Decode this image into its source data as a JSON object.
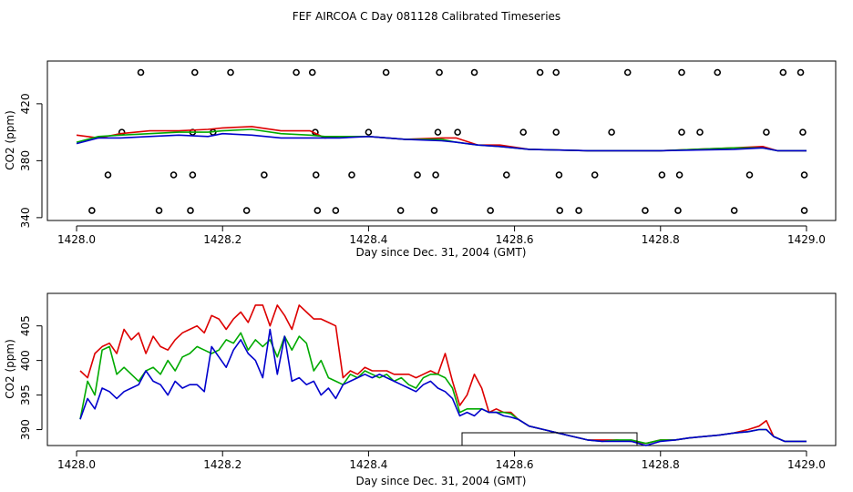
{
  "title": "FEF AIRCOA C  Day 081128  Calibrated Timeseries",
  "chart_data": [
    {
      "type": "scatter+line",
      "xlabel": "Day since Dec. 31, 2004 (GMT)",
      "ylabel": "CO2 (ppm)",
      "xlim": [
        1427.96,
        1429.04
      ],
      "ylim": [
        338,
        450
      ],
      "xticks": [
        1428.0,
        1428.2,
        1428.4,
        1428.6,
        1428.8,
        1429.0
      ],
      "xtick_labels": [
        "1428.0",
        "1428.2",
        "1428.4",
        "1428.6",
        "1428.8",
        "1429.0"
      ],
      "yticks": [
        340,
        380,
        420
      ],
      "ytick_labels": [
        "340",
        "380",
        "420"
      ],
      "markers": [
        {
          "x": 1428.088,
          "y": 442
        },
        {
          "x": 1428.162,
          "y": 442
        },
        {
          "x": 1428.211,
          "y": 442
        },
        {
          "x": 1428.301,
          "y": 442
        },
        {
          "x": 1428.323,
          "y": 442
        },
        {
          "x": 1428.424,
          "y": 442
        },
        {
          "x": 1428.497,
          "y": 442
        },
        {
          "x": 1428.545,
          "y": 442
        },
        {
          "x": 1428.635,
          "y": 442
        },
        {
          "x": 1428.657,
          "y": 442
        },
        {
          "x": 1428.755,
          "y": 442
        },
        {
          "x": 1428.829,
          "y": 442
        },
        {
          "x": 1428.878,
          "y": 442
        },
        {
          "x": 1428.968,
          "y": 442
        },
        {
          "x": 1428.992,
          "y": 442
        },
        {
          "x": 1428.062,
          "y": 400
        },
        {
          "x": 1428.159,
          "y": 400
        },
        {
          "x": 1428.187,
          "y": 400
        },
        {
          "x": 1428.327,
          "y": 400
        },
        {
          "x": 1428.4,
          "y": 400
        },
        {
          "x": 1428.495,
          "y": 400
        },
        {
          "x": 1428.522,
          "y": 400
        },
        {
          "x": 1428.612,
          "y": 400
        },
        {
          "x": 1428.657,
          "y": 400
        },
        {
          "x": 1428.733,
          "y": 400
        },
        {
          "x": 1428.829,
          "y": 400
        },
        {
          "x": 1428.854,
          "y": 400
        },
        {
          "x": 1428.945,
          "y": 400
        },
        {
          "x": 1428.995,
          "y": 400
        },
        {
          "x": 1428.043,
          "y": 370
        },
        {
          "x": 1428.133,
          "y": 370
        },
        {
          "x": 1428.159,
          "y": 370
        },
        {
          "x": 1428.257,
          "y": 370
        },
        {
          "x": 1428.328,
          "y": 370
        },
        {
          "x": 1428.377,
          "y": 370
        },
        {
          "x": 1428.467,
          "y": 370
        },
        {
          "x": 1428.492,
          "y": 370
        },
        {
          "x": 1428.589,
          "y": 370
        },
        {
          "x": 1428.661,
          "y": 370
        },
        {
          "x": 1428.71,
          "y": 370
        },
        {
          "x": 1428.802,
          "y": 370
        },
        {
          "x": 1428.826,
          "y": 370
        },
        {
          "x": 1428.922,
          "y": 370
        },
        {
          "x": 1428.997,
          "y": 370
        },
        {
          "x": 1428.021,
          "y": 345
        },
        {
          "x": 1428.113,
          "y": 345
        },
        {
          "x": 1428.156,
          "y": 345
        },
        {
          "x": 1428.233,
          "y": 345
        },
        {
          "x": 1428.33,
          "y": 345
        },
        {
          "x": 1428.355,
          "y": 345
        },
        {
          "x": 1428.444,
          "y": 345
        },
        {
          "x": 1428.49,
          "y": 345
        },
        {
          "x": 1428.567,
          "y": 345
        },
        {
          "x": 1428.662,
          "y": 345
        },
        {
          "x": 1428.688,
          "y": 345
        },
        {
          "x": 1428.779,
          "y": 345
        },
        {
          "x": 1428.824,
          "y": 345
        },
        {
          "x": 1428.901,
          "y": 345
        },
        {
          "x": 1428.997,
          "y": 345
        }
      ],
      "series": [
        {
          "name": "red",
          "color": "#dd0000",
          "x": [
            1428.0,
            1428.03,
            1428.06,
            1428.1,
            1428.14,
            1428.18,
            1428.2,
            1428.24,
            1428.28,
            1428.32,
            1428.34,
            1428.36,
            1428.4,
            1428.45,
            1428.5,
            1428.52,
            1428.55,
            1428.58,
            1428.62,
            1428.7,
            1428.8,
            1428.9,
            1428.94,
            1428.96,
            1429.0
          ],
          "y": [
            398,
            396,
            399,
            401,
            401,
            402,
            403,
            404,
            401,
            401,
            396,
            397,
            397,
            395,
            396,
            396,
            391,
            391,
            388,
            387,
            387,
            389,
            390,
            387,
            387
          ]
        },
        {
          "name": "green",
          "color": "#00aa00",
          "x": [
            1428.0,
            1428.03,
            1428.06,
            1428.1,
            1428.14,
            1428.18,
            1428.2,
            1428.24,
            1428.28,
            1428.32,
            1428.34,
            1428.36,
            1428.4,
            1428.45,
            1428.5,
            1428.52,
            1428.55,
            1428.58,
            1428.62,
            1428.7,
            1428.8,
            1428.9,
            1428.94,
            1428.96,
            1429.0
          ],
          "y": [
            393,
            397,
            398,
            399,
            400,
            400,
            401,
            402,
            399,
            398,
            397,
            397,
            397,
            395,
            395,
            393,
            391,
            390,
            388,
            387,
            387,
            389,
            389,
            387,
            387
          ]
        },
        {
          "name": "blue",
          "color": "#0000cc",
          "x": [
            1428.0,
            1428.03,
            1428.06,
            1428.1,
            1428.14,
            1428.18,
            1428.2,
            1428.24,
            1428.28,
            1428.32,
            1428.34,
            1428.36,
            1428.4,
            1428.45,
            1428.5,
            1428.52,
            1428.55,
            1428.58,
            1428.62,
            1428.7,
            1428.8,
            1428.9,
            1428.94,
            1428.96,
            1429.0
          ],
          "y": [
            392,
            396,
            396,
            397,
            398,
            397,
            399,
            398,
            396,
            396,
            396,
            396,
            397,
            395,
            394,
            393,
            391,
            390,
            388,
            387,
            387,
            388,
            389,
            387,
            387
          ]
        }
      ]
    },
    {
      "type": "line",
      "xlabel": "Day since Dec. 31, 2004 (GMT)",
      "ylabel": "CO2 (ppm)",
      "xlim": [
        1427.96,
        1429.04
      ],
      "ylim": [
        387.7,
        409.7
      ],
      "xticks": [
        1428.0,
        1428.2,
        1428.4,
        1428.6,
        1428.8,
        1429.0
      ],
      "xtick_labels": [
        "1428.0",
        "1428.2",
        "1428.4",
        "1428.6",
        "1428.8",
        "1429.0"
      ],
      "yticks": [
        390,
        395,
        400,
        405
      ],
      "ytick_labels": [
        "390",
        "395",
        "400",
        "405"
      ],
      "series": [
        {
          "name": "red",
          "color": "#dd0000",
          "x": [
            1428.005,
            1428.015,
            1428.025,
            1428.035,
            1428.045,
            1428.055,
            1428.065,
            1428.075,
            1428.085,
            1428.095,
            1428.105,
            1428.115,
            1428.125,
            1428.135,
            1428.145,
            1428.155,
            1428.165,
            1428.175,
            1428.185,
            1428.195,
            1428.205,
            1428.215,
            1428.225,
            1428.235,
            1428.245,
            1428.255,
            1428.265,
            1428.275,
            1428.285,
            1428.295,
            1428.305,
            1428.315,
            1428.325,
            1428.335,
            1428.345,
            1428.355,
            1428.365,
            1428.375,
            1428.385,
            1428.395,
            1428.405,
            1428.415,
            1428.425,
            1428.435,
            1428.445,
            1428.455,
            1428.465,
            1428.475,
            1428.485,
            1428.495,
            1428.505,
            1428.515,
            1428.525,
            1428.535,
            1428.545,
            1428.555,
            1428.565,
            1428.575,
            1428.585,
            1428.595,
            1428.605,
            1428.62,
            1428.64,
            1428.66,
            1428.68,
            1428.7,
            1428.72,
            1428.74,
            1428.76,
            1428.78,
            1428.8,
            1428.82,
            1428.84,
            1428.86,
            1428.88,
            1428.9,
            1428.92,
            1428.935,
            1428.945,
            1428.955,
            1428.97,
            1428.985,
            1429.0
          ],
          "y": [
            398.5,
            397.5,
            401,
            402,
            402.5,
            401,
            404.5,
            403,
            404,
            401,
            403.5,
            402,
            401.5,
            403,
            404,
            404.5,
            405,
            404,
            406.5,
            406,
            404.5,
            406,
            407,
            405.5,
            408,
            408,
            405,
            408,
            406.5,
            404.5,
            408,
            407,
            406,
            406,
            405.5,
            405,
            397.5,
            398.5,
            398,
            399,
            398.5,
            398.5,
            398.5,
            398,
            398,
            398,
            397.5,
            398,
            398.5,
            398,
            401,
            397,
            393.5,
            395,
            398,
            396,
            392.5,
            393,
            392.5,
            392.5,
            391.5,
            390.5,
            390,
            389.5,
            389,
            388.5,
            388.5,
            388.5,
            388.3,
            388,
            388.5,
            388.5,
            388.8,
            389,
            389.2,
            389.5,
            390,
            390.5,
            391.3,
            389,
            388.3,
            388.3,
            388.3
          ]
        },
        {
          "name": "green",
          "color": "#00aa00",
          "x": [
            1428.005,
            1428.015,
            1428.025,
            1428.035,
            1428.045,
            1428.055,
            1428.065,
            1428.075,
            1428.085,
            1428.095,
            1428.105,
            1428.115,
            1428.125,
            1428.135,
            1428.145,
            1428.155,
            1428.165,
            1428.175,
            1428.185,
            1428.195,
            1428.205,
            1428.215,
            1428.225,
            1428.235,
            1428.245,
            1428.255,
            1428.265,
            1428.275,
            1428.285,
            1428.295,
            1428.305,
            1428.315,
            1428.325,
            1428.335,
            1428.345,
            1428.355,
            1428.365,
            1428.375,
            1428.385,
            1428.395,
            1428.405,
            1428.415,
            1428.425,
            1428.435,
            1428.445,
            1428.455,
            1428.465,
            1428.475,
            1428.485,
            1428.495,
            1428.505,
            1428.515,
            1428.525,
            1428.535,
            1428.545,
            1428.555,
            1428.565,
            1428.575,
            1428.585,
            1428.595,
            1428.605,
            1428.62,
            1428.64,
            1428.66,
            1428.68,
            1428.7,
            1428.72,
            1428.74,
            1428.76,
            1428.78,
            1428.8,
            1428.82,
            1428.84,
            1428.86,
            1428.88,
            1428.9,
            1428.92,
            1428.935,
            1428.945,
            1428.955,
            1428.97,
            1428.985,
            1429.0
          ],
          "y": [
            391.5,
            397,
            395,
            401.5,
            402,
            398,
            399,
            398,
            397,
            398.5,
            399,
            398,
            400,
            398.5,
            400.5,
            401,
            402,
            401.5,
            401,
            401.5,
            403,
            402.5,
            404,
            401.5,
            403,
            402,
            403,
            400.5,
            403.5,
            401.5,
            403.5,
            402.5,
            398.5,
            400,
            397.5,
            397,
            396.5,
            398,
            397.5,
            398.5,
            398,
            397.5,
            398,
            397,
            397.5,
            396.5,
            396,
            397.5,
            398,
            398,
            397.5,
            396,
            392.5,
            393,
            393,
            393,
            392.5,
            392.5,
            392.5,
            392.3,
            391.5,
            390.5,
            390,
            389.5,
            389,
            388.5,
            388.3,
            388.5,
            388.5,
            388,
            388.5,
            388.5,
            388.8,
            389,
            389.2,
            389.5,
            389.7,
            390,
            390,
            389,
            388.3,
            388.3,
            388.3
          ]
        },
        {
          "name": "blue",
          "color": "#0000cc",
          "x": [
            1428.005,
            1428.015,
            1428.025,
            1428.035,
            1428.045,
            1428.055,
            1428.065,
            1428.075,
            1428.085,
            1428.095,
            1428.105,
            1428.115,
            1428.125,
            1428.135,
            1428.145,
            1428.155,
            1428.165,
            1428.175,
            1428.185,
            1428.195,
            1428.205,
            1428.215,
            1428.225,
            1428.235,
            1428.245,
            1428.255,
            1428.265,
            1428.275,
            1428.285,
            1428.295,
            1428.305,
            1428.315,
            1428.325,
            1428.335,
            1428.345,
            1428.355,
            1428.365,
            1428.375,
            1428.385,
            1428.395,
            1428.405,
            1428.415,
            1428.425,
            1428.435,
            1428.445,
            1428.455,
            1428.465,
            1428.475,
            1428.485,
            1428.495,
            1428.505,
            1428.515,
            1428.525,
            1428.535,
            1428.545,
            1428.555,
            1428.565,
            1428.575,
            1428.585,
            1428.595,
            1428.605,
            1428.62,
            1428.64,
            1428.66,
            1428.68,
            1428.7,
            1428.72,
            1428.74,
            1428.76,
            1428.78,
            1428.8,
            1428.82,
            1428.84,
            1428.86,
            1428.88,
            1428.9,
            1428.92,
            1428.935,
            1428.945,
            1428.955,
            1428.97,
            1428.985,
            1429.0
          ],
          "y": [
            391.5,
            394.5,
            393,
            396,
            395.5,
            394.5,
            395.5,
            396,
            396.5,
            398.5,
            397,
            396.5,
            395,
            397,
            396,
            396.5,
            396.5,
            395.5,
            402,
            400.5,
            399,
            401.5,
            403,
            401,
            400,
            397.5,
            404.5,
            398,
            403.5,
            397,
            397.5,
            396.5,
            397,
            395,
            396,
            394.5,
            396.5,
            397,
            397.5,
            398,
            397.5,
            398,
            397.5,
            397,
            396.5,
            396,
            395.5,
            396.5,
            397,
            396,
            395.5,
            394.5,
            392,
            392.5,
            392,
            393,
            392.5,
            392.5,
            392,
            391.8,
            391.5,
            390.5,
            390,
            389.5,
            389,
            388.5,
            388.3,
            388.3,
            388.3,
            387.7,
            388.3,
            388.5,
            388.8,
            389,
            389.2,
            389.5,
            389.7,
            390,
            390,
            389,
            388.3,
            388.3,
            388.3
          ]
        }
      ]
    }
  ]
}
